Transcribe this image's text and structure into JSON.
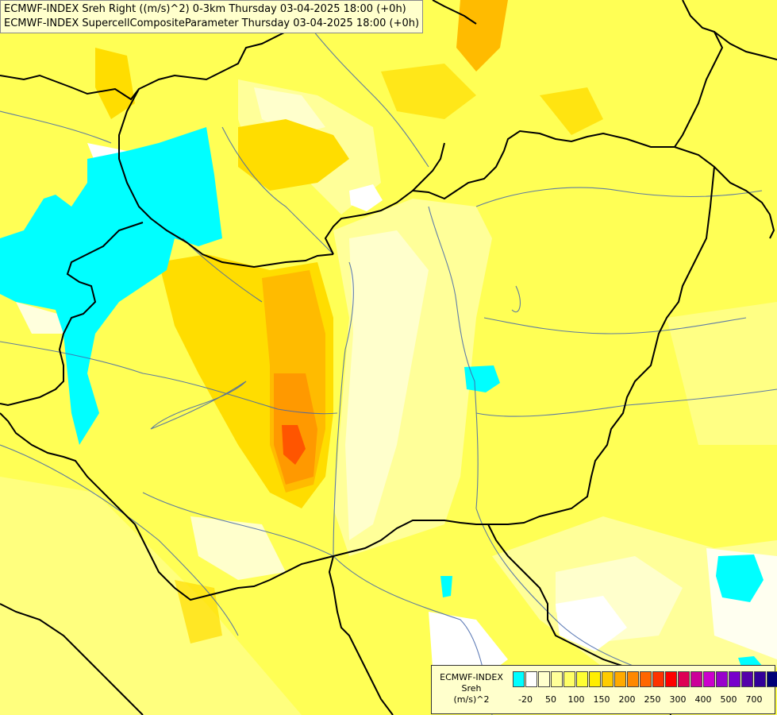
{
  "title": {
    "line1": "ECMWF-INDEX Sreh Right ((m/s)^2) 0-3km Thursday 03-04-2025 18:00 (+0h)",
    "line2": "ECMWF-INDEX SupercellCompositeParameter Thursday 03-04-2025 18:00 (+0h)"
  },
  "legend": {
    "model": "ECMWF-INDEX",
    "variable": "Sreh",
    "unit": "(m/s)^2",
    "colors": [
      "#00ffff",
      "#ffffff",
      "#ffffcc",
      "#ffff99",
      "#ffff66",
      "#ffff33",
      "#ffee00",
      "#ffcc00",
      "#ffaa00",
      "#ff8800",
      "#ff6600",
      "#ff3300",
      "#ff0000",
      "#dd0055",
      "#cc0099",
      "#cc00cc",
      "#9900cc",
      "#7700cc",
      "#5500aa",
      "#330099",
      "#000077"
    ],
    "tick_labels": [
      "-20",
      "50",
      "100",
      "150",
      "200",
      "250",
      "300",
      "400",
      "500",
      "700"
    ]
  },
  "map": {
    "background_color": "#ffff66",
    "border_color": "#000000",
    "river_color": "#4466aa"
  }
}
